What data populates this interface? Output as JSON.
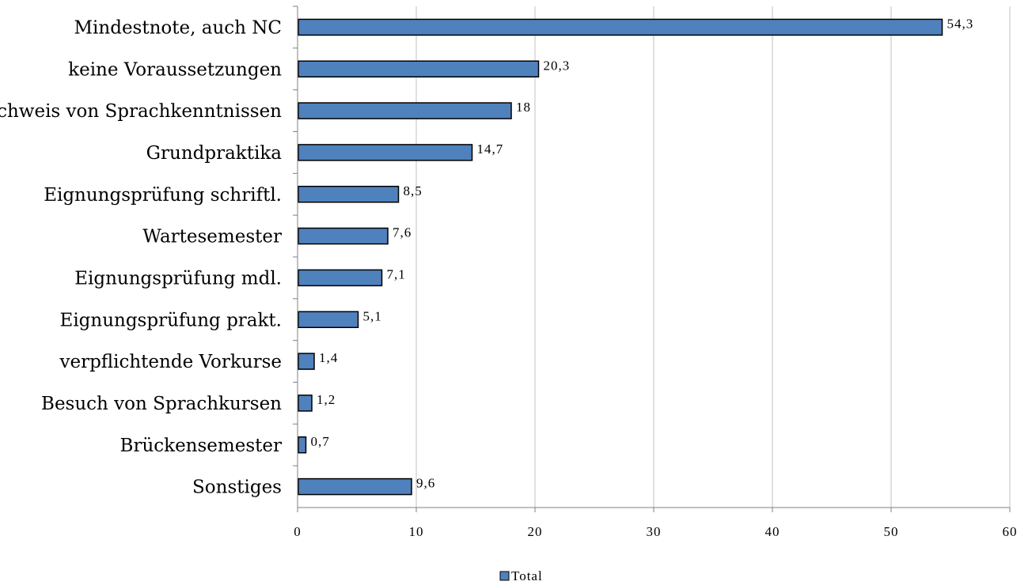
{
  "chart_data": {
    "type": "bar",
    "orientation": "horizontal",
    "categories": [
      "Mindestnote, auch NC",
      "keine Voraussetzungen",
      "Nachweis von Sprachkenntnissen",
      "Grundpraktika",
      "Eignungsprüfung schriftl.",
      "Wartesemester",
      "Eignungsprüfung mdl.",
      "Eignungsprüfung prakt.",
      "verpflichtende Vorkurse",
      "Besuch von Sprachkursen",
      "Brückensemester",
      "Sonstiges"
    ],
    "series": [
      {
        "name": "Total",
        "values": [
          54.3,
          20.3,
          18,
          14.7,
          8.5,
          7.6,
          7.1,
          5.1,
          1.4,
          1.2,
          0.7,
          9.6
        ],
        "labels": [
          "54,3",
          "20,3",
          "18",
          "14,7",
          "8,5",
          "7,6",
          "7,1",
          "5,1",
          "1,4",
          "1,2",
          "0,7",
          "9,6"
        ]
      }
    ],
    "xlim": [
      0,
      60
    ],
    "xticks": [
      0,
      10,
      20,
      30,
      40,
      50,
      60
    ],
    "grid": "vertical",
    "legend": "bottom-center",
    "bar_color": "#4f81bd",
    "bar_edge_color": "#000000",
    "grid_color": "#c0c0c0"
  }
}
